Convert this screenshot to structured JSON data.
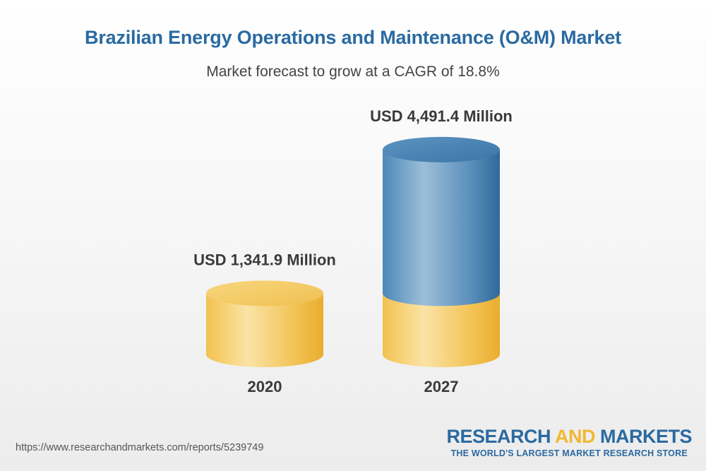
{
  "chart_data": {
    "type": "bar",
    "title": "Brazilian Energy Operations and Maintenance (O&M) Market",
    "subtitle": "Market forecast to grow at a CAGR of 18.8%",
    "categories": [
      "2020",
      "2027"
    ],
    "values": [
      1341.9,
      4491.4
    ],
    "data_labels": [
      "USD 1,341.9 Million",
      "USD 4,491.4 Million"
    ],
    "unit": "USD Million",
    "cagr": "18.8%",
    "colors": {
      "base": "#f3c24f",
      "growth": "#3f7fb0"
    }
  },
  "footer": {
    "url": "https://www.researchandmarkets.com/reports/5239749"
  },
  "brand": {
    "name_part1": "RESEARCH ",
    "name_part2": "AND",
    "name_part3": " MARKETS",
    "tagline": "THE WORLD'S LARGEST MARKET RESEARCH STORE"
  }
}
